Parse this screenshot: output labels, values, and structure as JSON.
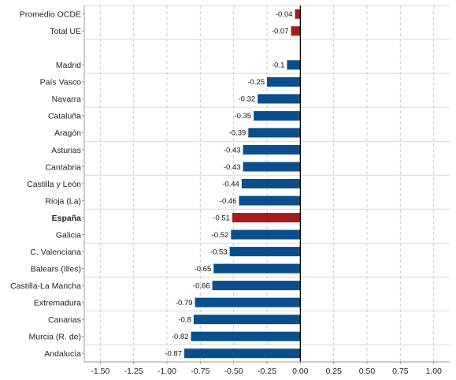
{
  "chart_data": {
    "type": "bar",
    "orientation": "horizontal",
    "title": "",
    "xlabel": "",
    "ylabel": "",
    "xlim": [
      -1.62,
      1.12
    ],
    "x_ticks": [
      -1.5,
      -1.25,
      -1.0,
      -0.75,
      -0.5,
      -0.25,
      0.0,
      0.25,
      0.5,
      0.75,
      1.0
    ],
    "x_tick_labels": [
      "-1.50",
      "-1.25",
      "-1.00",
      "-0.75",
      "-0.50",
      "-0.25",
      "0.00",
      "0.25",
      "0.50",
      "0.75",
      "1.00"
    ],
    "grid": "vertical dashed",
    "legend": "none",
    "categories": [
      "Promedio OCDE",
      "Total UE",
      "",
      "Madrid",
      "País Vasco",
      "Navarra",
      "Cataluña",
      "Aragón",
      "Asturias",
      "Cantabria",
      "Castilla y León",
      "Rioja (La)",
      "España",
      "Galicia",
      "C. Valenciana",
      "Balears (Illes)",
      "Castilla-La Mancha",
      "Extremadura",
      "Canarias",
      "Murcia (R. de)",
      "Andalucía"
    ],
    "values": [
      -0.04,
      -0.07,
      null,
      -0.1,
      -0.25,
      -0.32,
      -0.35,
      -0.39,
      -0.43,
      -0.43,
      -0.44,
      -0.46,
      -0.51,
      -0.52,
      -0.53,
      -0.65,
      -0.66,
      -0.79,
      -0.8,
      -0.82,
      -0.87
    ],
    "value_labels": [
      "-0.04",
      "-0.07",
      "",
      "-0.1",
      "-0.25",
      "-0.32",
      "-0.35",
      "-0.39",
      "-0.43",
      "-0.43",
      "-0.44",
      "-0.46",
      "-0.51",
      "-0.52",
      "-0.53",
      "-0.65",
      "-0.66",
      "-0.79",
      "-0.8",
      "-0.82",
      "-0.87"
    ],
    "highlighted": [
      "Promedio OCDE",
      "Total UE",
      "España"
    ],
    "bold_categories": [
      "España"
    ],
    "colors": {
      "default_bar": "#0a4f8c",
      "highlight_bar": "#a61c1c",
      "grid": "#cccccc",
      "separator": "#d9d9d0",
      "zero_line": "#000000",
      "axis": "#999999"
    }
  }
}
